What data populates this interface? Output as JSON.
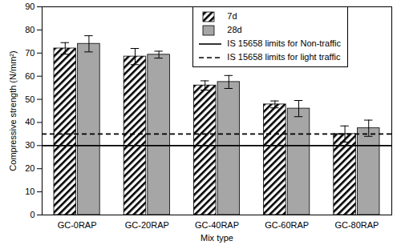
{
  "chart_data": {
    "type": "bar",
    "x_label": "Mix type",
    "y_label": "Compressive strength (N/mm²)",
    "categories": [
      "GC-0RAP",
      "GC-20RAP",
      "GC-40RAP",
      "GC-60RAP",
      "GC-80RAP"
    ],
    "series": [
      {
        "name": "7d",
        "color": "#000000",
        "line_style": "hatched",
        "values": [
          72,
          68.5,
          56,
          47.8,
          35
        ],
        "errors": [
          2.5,
          3.5,
          2,
          1.5,
          3.5
        ]
      },
      {
        "name": "28d",
        "color": "#a6a6a6",
        "values": [
          74,
          69.3,
          57.5,
          46,
          37.5
        ],
        "errors": [
          3.5,
          1.5,
          2.8,
          3.5,
          3.5
        ]
      }
    ],
    "reference_lines": [
      {
        "value": 30,
        "label": "IS 15658 limits for Non-traffic",
        "line_style": "solid"
      },
      {
        "value": 35,
        "label": "IS 15658 limits for light traffic",
        "line_style": "dashed"
      }
    ],
    "ylim": [
      0,
      90
    ],
    "yticks": [
      0,
      10,
      20,
      30,
      40,
      50,
      60,
      70,
      80,
      90
    ],
    "grid": false,
    "legend": "top-right"
  }
}
